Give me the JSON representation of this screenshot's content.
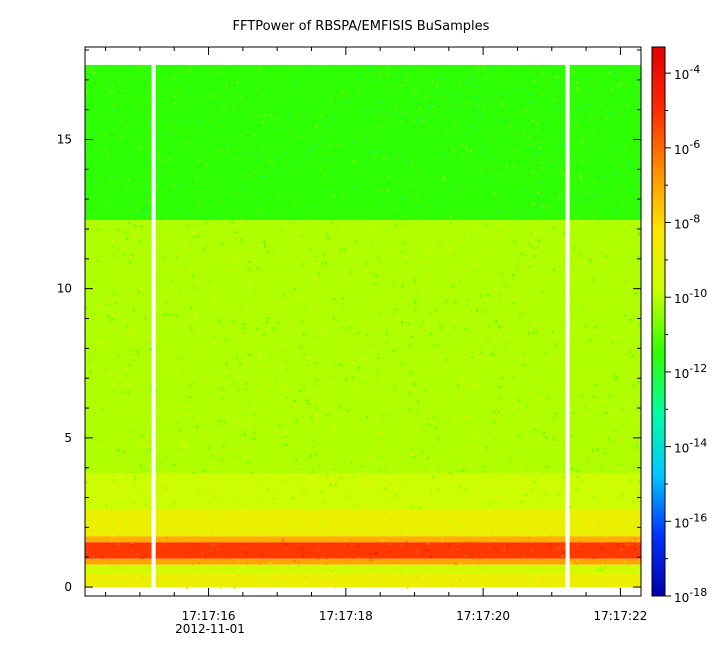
{
  "chart_data": {
    "type": "heatmap",
    "title": "FFTPower of RBSPA/EMFISIS  BuSamples",
    "xlabel": "",
    "ylabel": "",
    "x_start": "17:17:14.2",
    "x_end": "17:17:22.3",
    "x_ticks": [
      "17:17:16",
      "17:17:18",
      "17:17:20",
      "17:17:22"
    ],
    "x_minor_tick_seconds": 0.5,
    "x_date_label": "2012-11-01",
    "ylim": [
      -0.3,
      18.1
    ],
    "y_ticks": [
      0,
      5,
      10,
      15
    ],
    "data_y_range": [
      0,
      17.5
    ],
    "colorbar": {
      "scale": "log",
      "range_exponents": [
        -18,
        -3.3
      ],
      "tick_exponents": [
        -18,
        -16,
        -14,
        -12,
        -10,
        -8,
        -6,
        -4
      ],
      "tick_base": "10",
      "colormap": [
        "#0000a8",
        "#0032ff",
        "#00c8ff",
        "#00ffa0",
        "#30ff00",
        "#c8ff00",
        "#ffe600",
        "#ff8c00",
        "#ff2800",
        "#e00000"
      ]
    },
    "gaps": [
      {
        "start": "17:17:15.17",
        "end": "17:17:15.23"
      },
      {
        "start": "17:17:21.20",
        "end": "17:17:21.26"
      }
    ],
    "bands": [
      {
        "y_from": 12.3,
        "y_to": 17.5,
        "log10_power": -11.5
      },
      {
        "y_from": 3.8,
        "y_to": 12.3,
        "log10_power": -10.1
      },
      {
        "y_from": 2.6,
        "y_to": 3.8,
        "log10_power": -9.7
      },
      {
        "y_from": 1.7,
        "y_to": 2.6,
        "log10_power": -8.8
      },
      {
        "y_from": 1.5,
        "y_to": 1.7,
        "log10_power": -7.2
      },
      {
        "y_from": 0.95,
        "y_to": 1.5,
        "log10_power": -5.2
      },
      {
        "y_from": 0.75,
        "y_to": 0.95,
        "log10_power": -7.0
      },
      {
        "y_from": 0.45,
        "y_to": 0.75,
        "log10_power": -9.6
      },
      {
        "y_from": 0.0,
        "y_to": 0.45,
        "log10_power": -8.8
      }
    ]
  }
}
